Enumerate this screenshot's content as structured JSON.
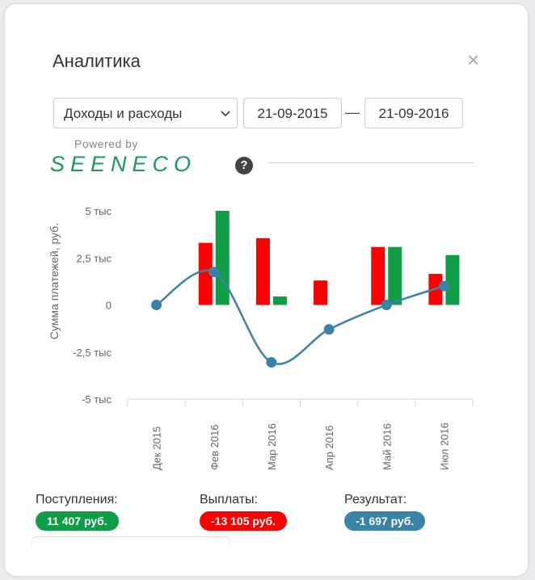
{
  "modal": {
    "title": "Аналитика",
    "close_icon": "close-icon"
  },
  "filters": {
    "type_selected": "Доходы и расходы",
    "date_from": "21-09-2015",
    "date_separator": "—",
    "date_to": "21-09-2016"
  },
  "branding": {
    "powered": "Powered by",
    "name": "SEENECO",
    "help_icon": "question-circle-icon",
    "help_text": "?"
  },
  "chart_data": {
    "type": "bar",
    "ylabel": "Сумма платежей, руб.",
    "categories": [
      "Дек 2015",
      "Фев 2016",
      "Мар 2016",
      "Апр 2016",
      "Май 2016",
      "Июл 2016"
    ],
    "series": [
      {
        "values": [
          0,
          3300,
          3550,
          1300,
          3080,
          1650
        ],
        "color": "#ff0000"
      },
      {
        "values": [
          0,
          5000,
          450,
          0,
          3080,
          2650
        ],
        "color": "#0f9d48"
      },
      {
        "values": [
          0,
          1750,
          -3050,
          -1300,
          0,
          1000
        ],
        "color": "#3a83a8"
      }
    ],
    "yticks": [
      "5 тыс",
      "2,5 тыс",
      "0",
      "-2,5 тыс",
      "-5 тыс"
    ],
    "ylim": [
      -5000,
      5000
    ],
    "grid": false
  },
  "summary": {
    "income_label": "Поступления:",
    "income_value": "11 407 руб.",
    "expense_label": "Выплаты:",
    "expense_value": "-13 105 руб.",
    "result_label": "Результат:",
    "result_value": "-1 697 руб.",
    "income_color": "#0f9d48",
    "expense_color": "#ff0000",
    "result_color": "#3a83a8"
  }
}
